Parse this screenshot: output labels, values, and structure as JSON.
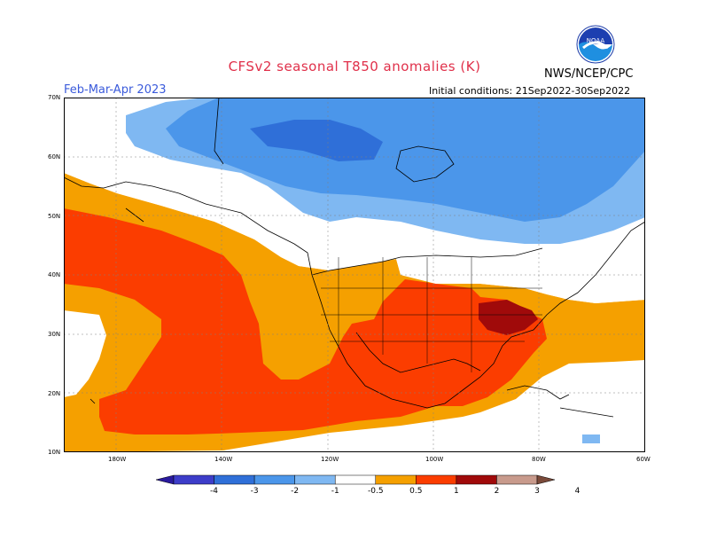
{
  "header": {
    "title": "CFSv2 seasonal T850 anomalies (K)",
    "org": "NWS/NCEP/CPC",
    "period": "Feb-Mar-Apr 2023",
    "initial_conditions": "Initial conditions: 21Sep2022-30Sep2022",
    "logo_text": "NOAA"
  },
  "axes": {
    "lat_labels": [
      "70N",
      "60N",
      "50N",
      "40N",
      "30N",
      "20N",
      "10N"
    ],
    "lon_labels": [
      "180W",
      "140W",
      "120W",
      "100W",
      "80W",
      "60W"
    ]
  },
  "colorbar": {
    "labels": [
      "-4",
      "-3",
      "-2",
      "-1",
      "-0.5",
      "0.5",
      "1",
      "2",
      "3",
      "4"
    ],
    "colors": [
      "#2a1a9e",
      "#3d3dc9",
      "#2f6fd8",
      "#4b96ea",
      "#7fb8f2",
      "#ffffff",
      "#f5a000",
      "#fb3d00",
      "#a00a0a",
      "#c89a8c",
      "#7a4a3a"
    ]
  },
  "map_colors": {
    "warm_05": "#f5a000",
    "warm_1": "#fb3d00",
    "warm_2": "#a00a0a",
    "cool_05": "#7fb8f2",
    "cool_1": "#4b96ea",
    "cool_2": "#2f6fd8"
  }
}
